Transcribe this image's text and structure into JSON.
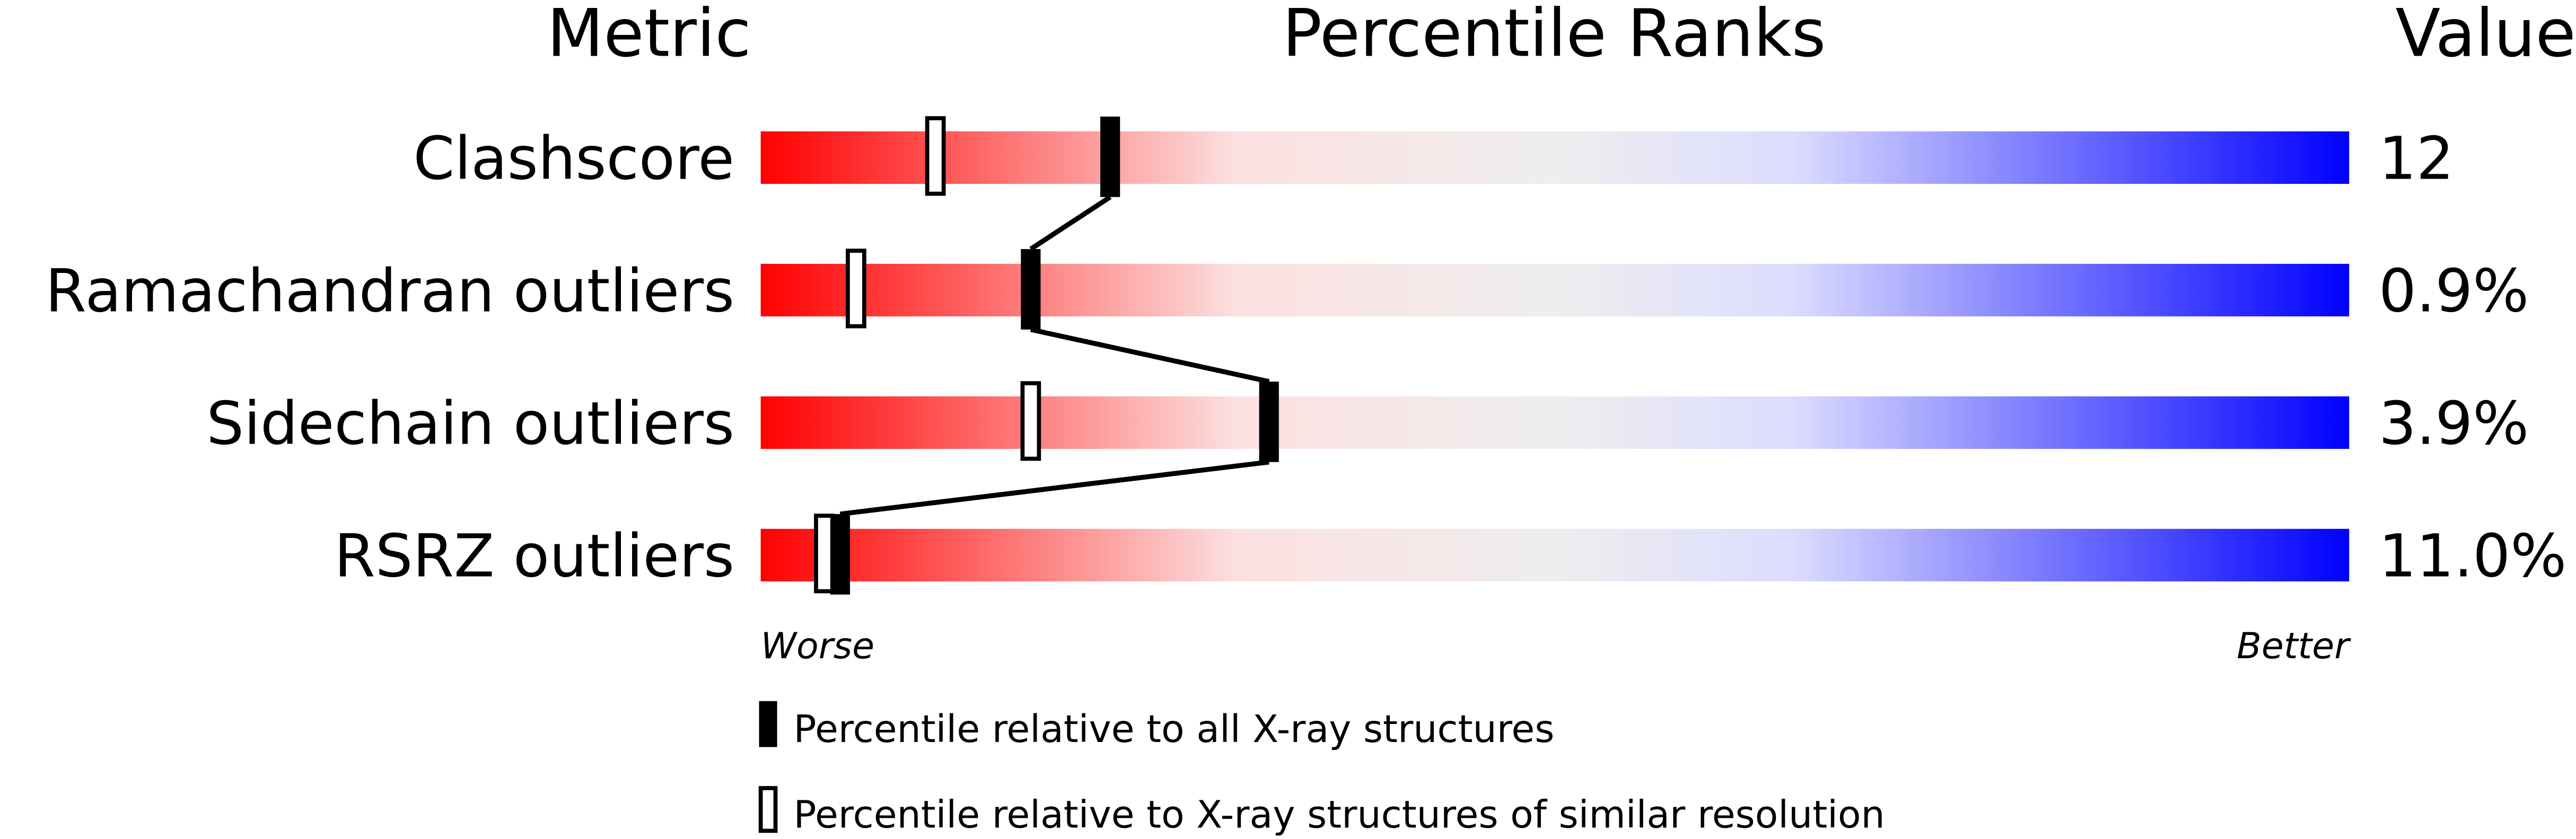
{
  "chart_data": {
    "type": "bar",
    "headers": {
      "metric": "Metric",
      "ranks": "Percentile Ranks",
      "value": "Value"
    },
    "xlim": [
      0,
      100
    ],
    "axis_labels": {
      "left": "Worse",
      "right": "Better"
    },
    "gradient_colors": [
      "#ff0000",
      "#fce0e0",
      "#eeeeee",
      "#dcdcff",
      "#0000ff"
    ],
    "rows": [
      {
        "metric": "Clashscore",
        "value": "12",
        "percentile_all": 22,
        "percentile_similar": 11
      },
      {
        "metric": "Ramachandran outliers",
        "value": "0.9%",
        "percentile_all": 17,
        "percentile_similar": 6
      },
      {
        "metric": "Sidechain outliers",
        "value": "3.9%",
        "percentile_all": 32,
        "percentile_similar": 17
      },
      {
        "metric": "RSRZ outliers",
        "value": "11.0%",
        "percentile_all": 5,
        "percentile_similar": 4
      }
    ],
    "legend": [
      {
        "marker": "filled",
        "label": "Percentile relative to all X-ray structures"
      },
      {
        "marker": "open",
        "label": "Percentile relative to X-ray structures of similar resolution"
      }
    ]
  }
}
